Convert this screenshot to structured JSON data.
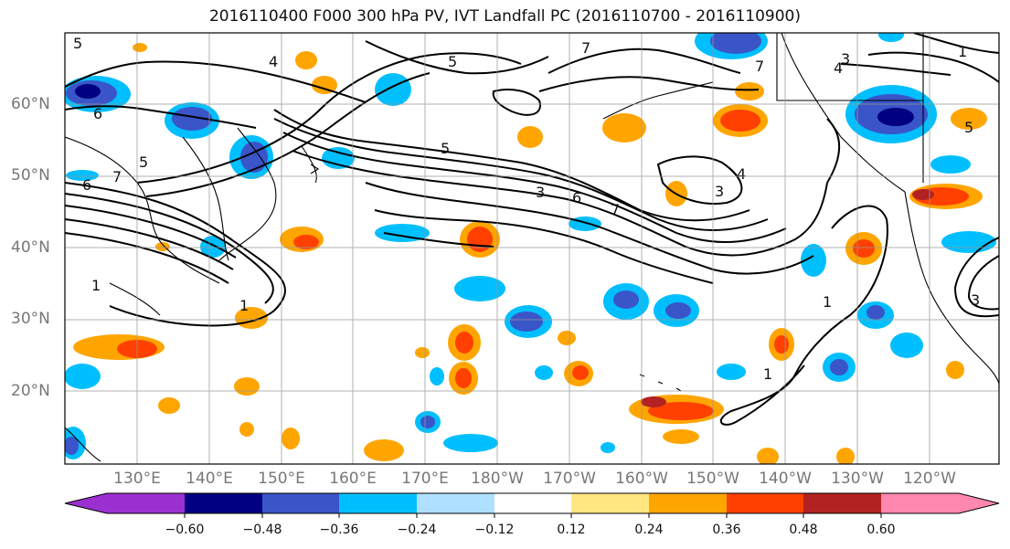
{
  "title": "2016110400 F000 300 hPa PV, IVT Landfall PC (2016110700 - 2016110900)",
  "lat_labels": [
    "60°N",
    "50°N",
    "40°N",
    "30°N",
    "20°N"
  ],
  "lon_labels": [
    "130°E",
    "140°E",
    "150°E",
    "160°E",
    "170°E",
    "180°W",
    "170°W",
    "160°W",
    "150°W",
    "140°W",
    "130°W",
    "120°W"
  ],
  "colorbar": {
    "ticks": [
      "−0.60",
      "−0.48",
      "−0.36",
      "−0.24",
      "−0.12",
      "0.12",
      "0.24",
      "0.36",
      "0.48",
      "0.60"
    ],
    "colors": [
      "#9b30d0",
      "#000080",
      "#3a55c8",
      "#00bfff",
      "#b0e0ff",
      "#ffffff",
      "#ffe680",
      "#ffa500",
      "#ff4000",
      "#b22222",
      "#ff88b0"
    ]
  },
  "contour_labels": [
    "5",
    "4",
    "6",
    "5",
    "7",
    "6",
    "1",
    "1",
    "5",
    "7",
    "6",
    "5",
    "3",
    "4",
    "3",
    "7",
    "4",
    "3",
    "1",
    "5",
    "3",
    "1",
    "1",
    "7"
  ]
}
